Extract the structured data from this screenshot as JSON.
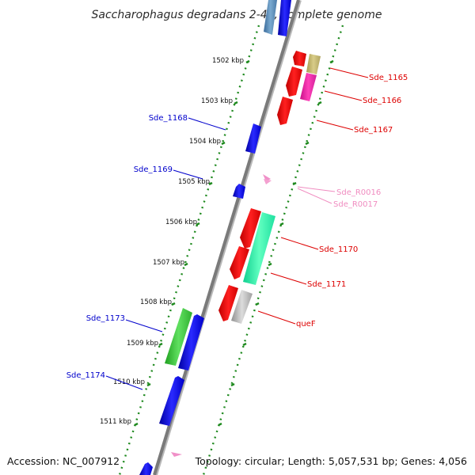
{
  "title": "Saccharophagus degradans 2-40, complete genome",
  "footer": {
    "accession": "Accession: NC_007912",
    "summary": "Topology: circular; Length: 5,057,531 bp; Genes: 4,056"
  },
  "colors": {
    "backbone": "#808080",
    "ticks": "#1f8a1f",
    "plus_label": "#0000cc",
    "minus_label": "#dd0000",
    "rna_label": "#f08cc0"
  },
  "scale_ticks": [
    "1502 kbp",
    "1503 kbp",
    "1504 kbp",
    "1505 kbp",
    "1506 kbp",
    "1507 kbp",
    "1508 kbp",
    "1509 kbp",
    "1510 kbp",
    "1511 kbp"
  ],
  "plus_labels": [
    "Sde_1168",
    "Sde_1169",
    "Sde_1173",
    "Sde_1174"
  ],
  "minus_labels": [
    "Sde_1165",
    "Sde_1166",
    "Sde_1167",
    "Sde_R0016",
    "Sde_R0017",
    "Sde_1170",
    "Sde_1171",
    "queF"
  ]
}
